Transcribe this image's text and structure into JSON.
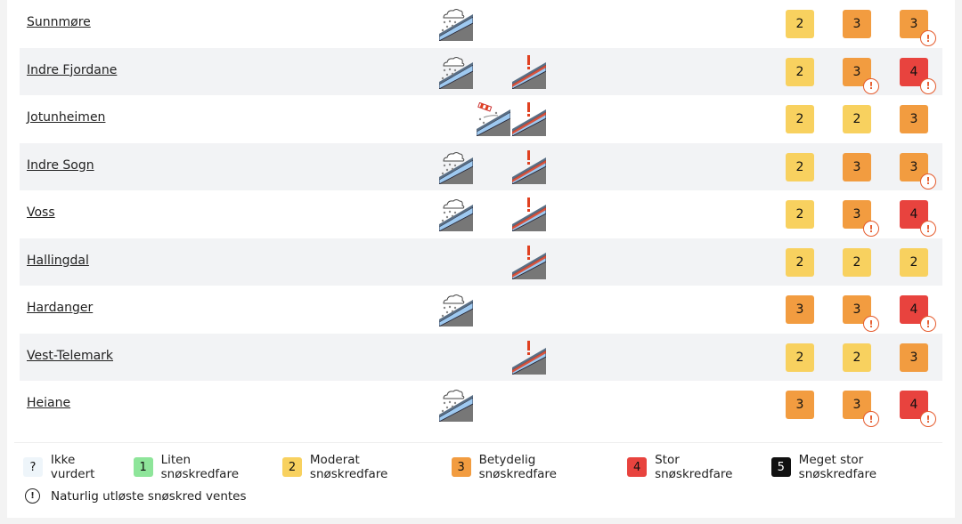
{
  "colors": {
    "?": "#eef5fa",
    "1": "#8ee59a",
    "2": "#f8d15f",
    "3": "#f29c40",
    "4": "#e8433e",
    "5": "#111111",
    "warning": "#e55b2d"
  },
  "regions": [
    {
      "name": "Sunnmøre",
      "problems": [
        "new-snow"
      ],
      "levels": [
        {
          "v": "2"
        },
        {
          "v": "3"
        },
        {
          "v": "3",
          "warn": true
        }
      ]
    },
    {
      "name": "Indre Fjordane",
      "problems": [
        "new-snow",
        "persistent-weak-layer"
      ],
      "levels": [
        {
          "v": "2"
        },
        {
          "v": "3",
          "warn": true
        },
        {
          "v": "4",
          "warn": true
        }
      ]
    },
    {
      "name": "Jotunheimen",
      "problems": [
        "wind-slab",
        "persistent-weak-layer"
      ],
      "levels": [
        {
          "v": "2"
        },
        {
          "v": "2"
        },
        {
          "v": "3"
        }
      ]
    },
    {
      "name": "Indre Sogn",
      "problems": [
        "new-snow",
        "persistent-weak-layer"
      ],
      "levels": [
        {
          "v": "2"
        },
        {
          "v": "3"
        },
        {
          "v": "3",
          "warn": true
        }
      ]
    },
    {
      "name": "Voss",
      "problems": [
        "new-snow",
        "persistent-weak-layer"
      ],
      "levels": [
        {
          "v": "2"
        },
        {
          "v": "3",
          "warn": true
        },
        {
          "v": "4",
          "warn": true
        }
      ]
    },
    {
      "name": "Hallingdal",
      "problems": [
        "persistent-weak-layer"
      ],
      "levels": [
        {
          "v": "2"
        },
        {
          "v": "2"
        },
        {
          "v": "2"
        }
      ]
    },
    {
      "name": "Hardanger",
      "problems": [
        "new-snow"
      ],
      "levels": [
        {
          "v": "3"
        },
        {
          "v": "3",
          "warn": true
        },
        {
          "v": "4",
          "warn": true
        }
      ]
    },
    {
      "name": "Vest-Telemark",
      "problems": [
        "persistent-weak-layer"
      ],
      "levels": [
        {
          "v": "2"
        },
        {
          "v": "2"
        },
        {
          "v": "3"
        }
      ]
    },
    {
      "name": "Heiane",
      "problems": [
        "new-snow"
      ],
      "levels": [
        {
          "v": "3"
        },
        {
          "v": "3",
          "warn": true
        },
        {
          "v": "4",
          "warn": true
        }
      ]
    }
  ],
  "legend": [
    {
      "level": "?",
      "label": "Ikke vurdert"
    },
    {
      "level": "1",
      "label": "Liten snøskredfare"
    },
    {
      "level": "2",
      "label": "Moderat snøskredfare"
    },
    {
      "level": "3",
      "label": "Betydelig snøskredfare"
    },
    {
      "level": "4",
      "label": "Stor snøskredfare"
    },
    {
      "level": "5",
      "label": "Meget stor snøskredfare"
    }
  ],
  "note": {
    "icon": "!",
    "label": "Naturlig utløste snøskred ventes"
  }
}
